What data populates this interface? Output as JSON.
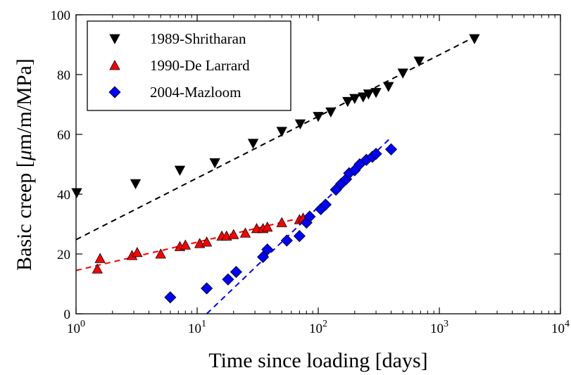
{
  "chart_data": {
    "type": "scatter",
    "title": "",
    "xlabel": "Time since loading [days]",
    "ylabel_prefix": "Basic creep [",
    "ylabel_mu": "μ",
    "ylabel_suffix": "m/m/MPa]",
    "xscale": "log",
    "xlim": [
      1,
      10000
    ],
    "ylim": [
      0,
      100
    ],
    "x_ticks": [
      1,
      10,
      100,
      1000,
      10000
    ],
    "x_tick_labels": [
      {
        "base": "10",
        "exp": "0"
      },
      {
        "base": "10",
        "exp": "1"
      },
      {
        "base": "10",
        "exp": "2"
      },
      {
        "base": "10",
        "exp": "3"
      },
      {
        "base": "10",
        "exp": "4"
      }
    ],
    "y_ticks": [
      0,
      20,
      40,
      60,
      80,
      100
    ],
    "y_tick_labels": [
      "0",
      "20",
      "40",
      "60",
      "80",
      "100"
    ],
    "grid": false,
    "legend_position": "top-left",
    "series": [
      {
        "name": "1989-Shritharan",
        "marker": "triangle-down",
        "color": "#000000",
        "x": [
          1,
          3.1,
          7.2,
          14,
          29,
          50,
          71,
          100,
          127,
          175,
          200,
          235,
          260,
          300,
          380,
          500,
          680,
          1950
        ],
        "y": [
          40.5,
          43.5,
          48,
          50.5,
          57,
          61,
          63.5,
          66,
          67.5,
          71,
          72,
          72.5,
          73.5,
          74,
          76,
          80.5,
          84.5,
          92
        ],
        "fit": {
          "color": "#000000",
          "x": [
            1,
            2000
          ],
          "y": [
            24.8,
            92.8
          ]
        }
      },
      {
        "name": "1990-De Larrard",
        "marker": "triangle-up",
        "color": "#ff0000",
        "x": [
          1.5,
          1.58,
          2.9,
          3.2,
          5,
          7.2,
          8,
          10.5,
          12,
          16,
          17.5,
          20,
          25,
          31,
          35,
          38,
          50,
          70,
          75
        ],
        "y": [
          15,
          18.5,
          19.5,
          20.5,
          20,
          22.5,
          23,
          23.5,
          24,
          26,
          26,
          26.5,
          27,
          28.5,
          28.5,
          29,
          30.5,
          31.5,
          32
        ],
        "fit": {
          "color": "#ff0000",
          "x": [
            1,
            80
          ],
          "y": [
            14.5,
            32.5
          ]
        }
      },
      {
        "name": "2004-Mazloom",
        "marker": "diamond",
        "color": "#0000ff",
        "x": [
          6,
          12,
          18,
          21,
          35,
          38,
          55,
          70,
          80,
          85,
          105,
          115,
          140,
          155,
          170,
          180,
          200,
          220,
          250,
          280,
          300,
          400
        ],
        "y": [
          5.5,
          8.5,
          11.5,
          14,
          19,
          21.5,
          24.5,
          26,
          30.5,
          32.5,
          35,
          36.5,
          41.5,
          43.5,
          45,
          47,
          48,
          50,
          51.5,
          52.5,
          53.5,
          55
        ],
        "fit": {
          "color": "#0000ff",
          "x": [
            12,
            400
          ],
          "y": [
            0,
            59
          ]
        }
      }
    ]
  }
}
